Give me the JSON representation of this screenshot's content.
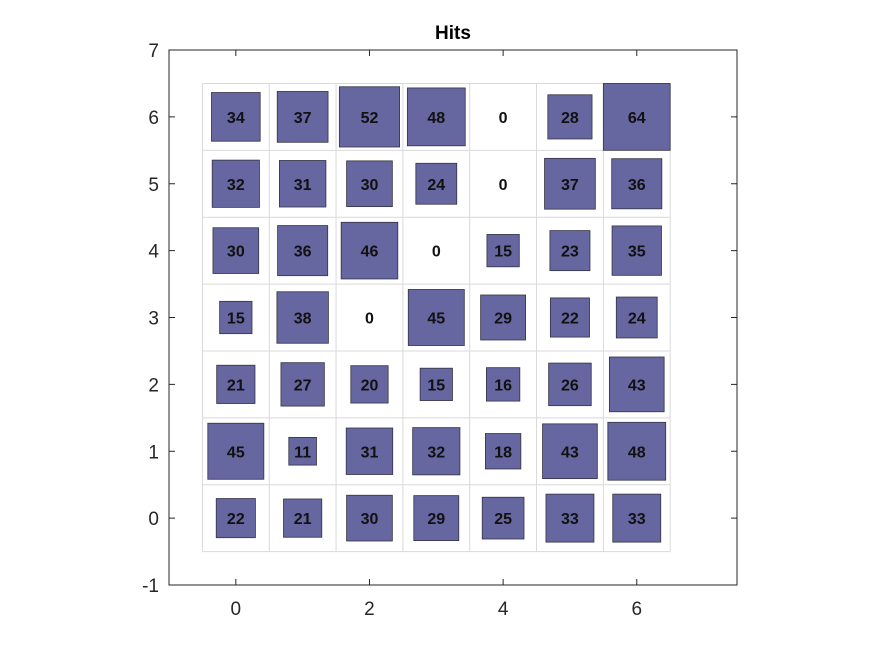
{
  "chart_data": {
    "type": "heatmap",
    "title": "Hits",
    "xlabel": "",
    "ylabel": "",
    "xlim": [
      -1,
      7.5
    ],
    "ylim": [
      -1,
      7
    ],
    "xticks": [
      "0",
      "2",
      "4",
      "6"
    ],
    "yticks": [
      "-1",
      "0",
      "1",
      "2",
      "3",
      "4",
      "5",
      "6",
      "7"
    ],
    "grid": "on",
    "x": [
      0,
      1,
      2,
      3,
      4,
      5,
      6
    ],
    "y": [
      0,
      1,
      2,
      3,
      4,
      5,
      6
    ],
    "values": [
      [
        22,
        21,
        30,
        29,
        25,
        33,
        33
      ],
      [
        45,
        11,
        31,
        32,
        18,
        43,
        48
      ],
      [
        21,
        27,
        20,
        15,
        16,
        26,
        43
      ],
      [
        15,
        38,
        0,
        45,
        29,
        22,
        24
      ],
      [
        30,
        36,
        46,
        0,
        15,
        23,
        35
      ],
      [
        32,
        31,
        30,
        24,
        0,
        37,
        36
      ],
      [
        34,
        37,
        52,
        48,
        0,
        28,
        64
      ]
    ],
    "max_value": 64,
    "marker_color": "#6666a0"
  }
}
